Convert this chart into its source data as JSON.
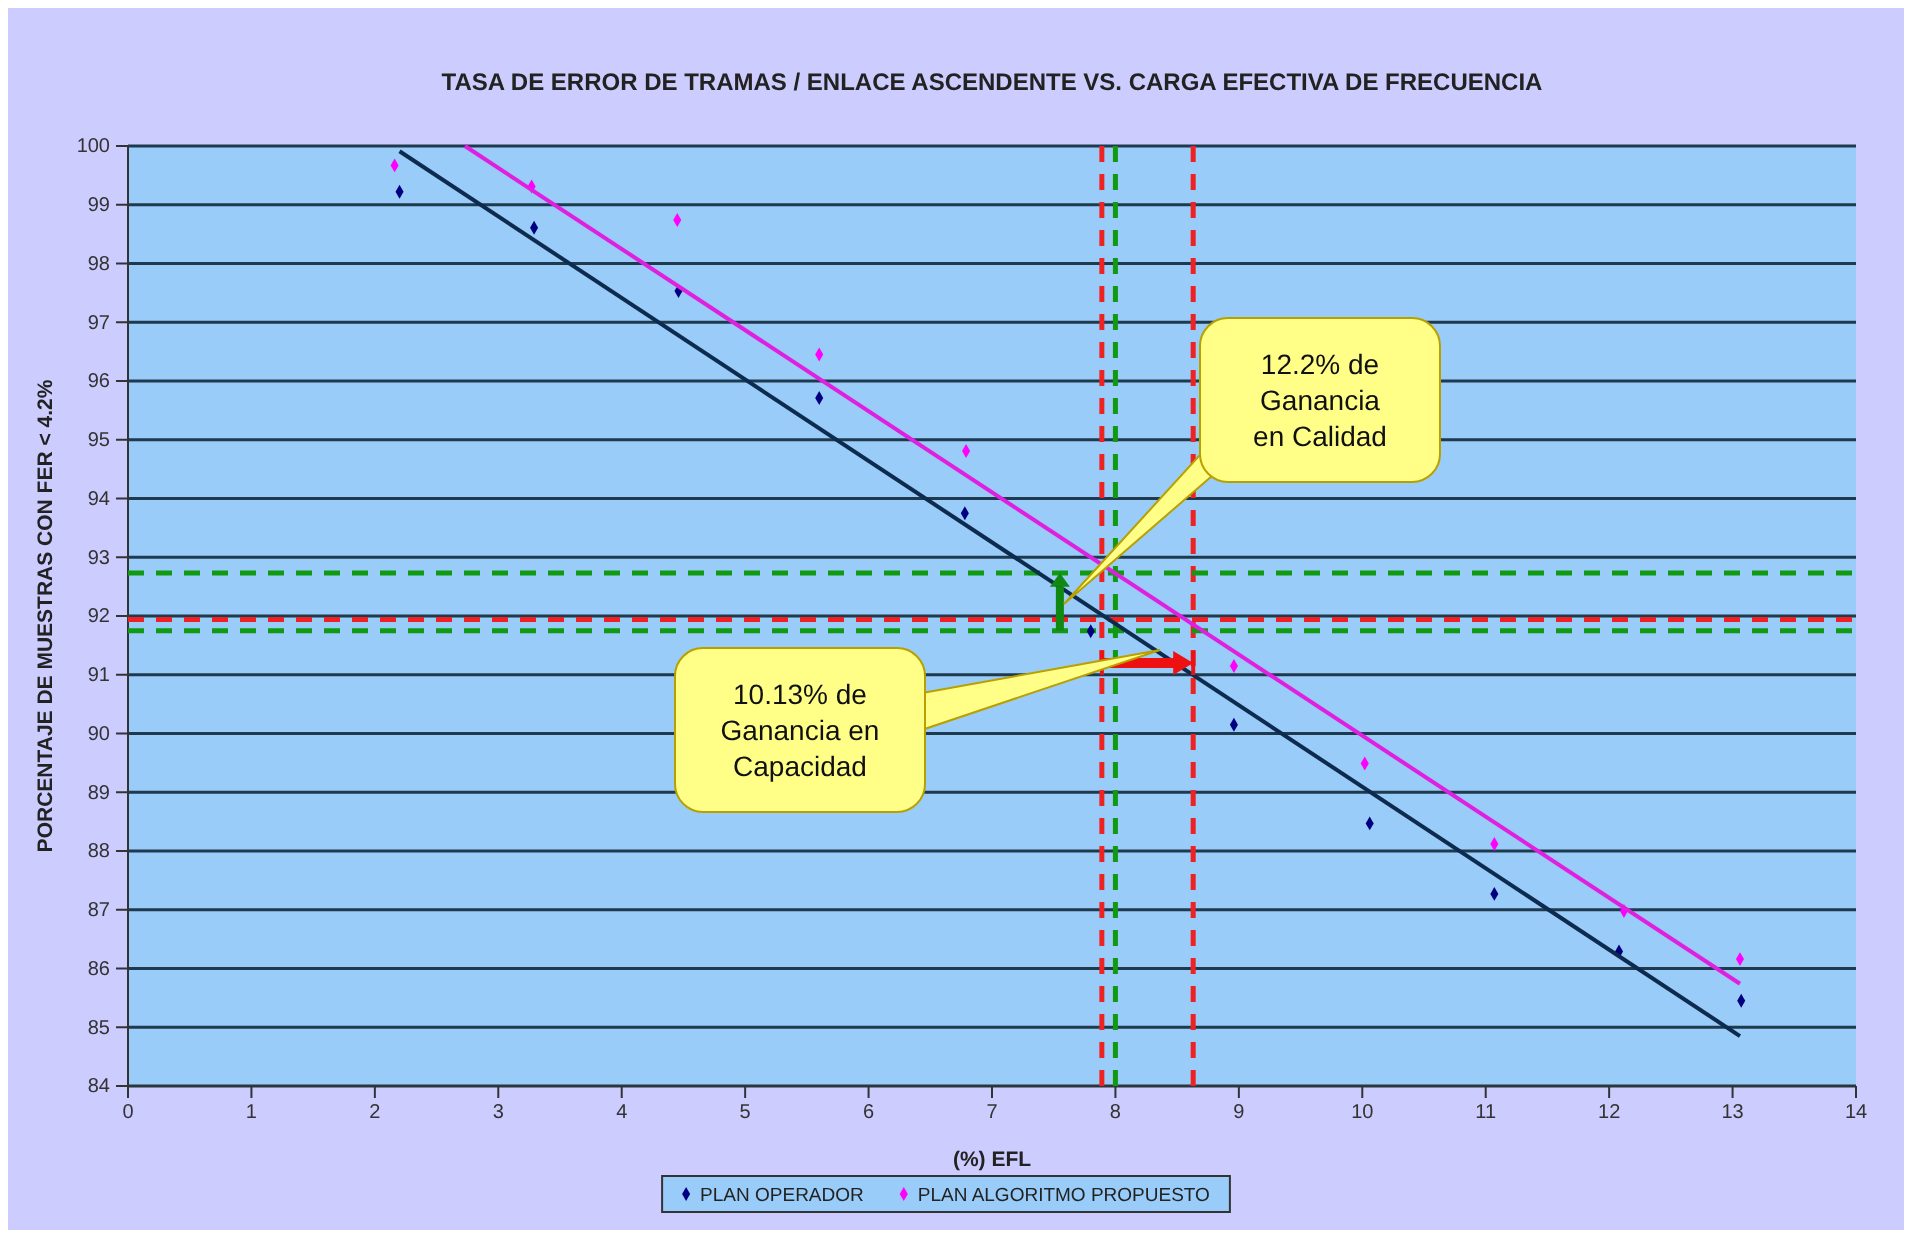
{
  "chart_data": {
    "type": "scatter",
    "title": "TASA DE ERROR DE TRAMAS / ENLACE ASCENDENTE VS. CARGA EFECTIVA DE FRECUENCIA",
    "xlabel": "(%) EFL",
    "ylabel": "PORCENTAJE DE MUESTRAS CON FER < 4.2%",
    "xlim": [
      0,
      14
    ],
    "xticks": [
      0,
      1,
      2,
      3,
      4,
      5,
      6,
      7,
      8,
      9,
      10,
      11,
      12,
      13,
      14
    ],
    "ylim": [
      84,
      100
    ],
    "yticks": [
      84,
      85,
      86,
      87,
      88,
      89,
      90,
      91,
      92,
      93,
      94,
      95,
      96,
      97,
      98,
      99,
      100
    ],
    "grid": "y",
    "legend": "bottom",
    "series": [
      {
        "name": "PLAN OPERADOR",
        "color": "#000080",
        "marker": "diamond",
        "x": [
          2.2,
          3.29,
          4.46,
          5.6,
          6.78,
          7.8,
          8.96,
          10.06,
          11.07,
          12.08,
          13.07
        ],
        "values": [
          99.22,
          98.61,
          97.53,
          95.71,
          93.75,
          91.74,
          90.15,
          88.47,
          87.27,
          86.29,
          85.45
        ]
      },
      {
        "name": "PLAN ALGORITMO PROPUESTO",
        "color": "#ff00ff",
        "marker": "diamond",
        "x": [
          2.16,
          3.27,
          4.45,
          5.6,
          6.79,
          8.96,
          10.02,
          11.07,
          12.12,
          13.06
        ],
        "values": [
          99.67,
          99.31,
          98.74,
          96.45,
          94.81,
          91.15,
          89.49,
          88.12,
          86.98,
          86.16
        ]
      },
      {
        "type": "line",
        "color": "#0d2b4e",
        "x": [
          2.2,
          13.06
        ],
        "values": [
          99.91,
          84.85
        ]
      },
      {
        "type": "line",
        "color": "#e020e0",
        "x": [
          2.73,
          13.06
        ],
        "values": [
          100,
          85.74
        ]
      }
    ],
    "ref_lines": [
      {
        "axis": "x",
        "value": 8.0,
        "color": "#119911",
        "line_style": "dashed"
      },
      {
        "axis": "x",
        "value": 7.89,
        "color": "#ee2222",
        "line_style": "dashed"
      },
      {
        "axis": "x",
        "value": 8.63,
        "color": "#ee2222",
        "line_style": "dashed"
      },
      {
        "axis": "y",
        "value": 91.94,
        "color": "#ee2222",
        "line_style": "dashed"
      },
      {
        "axis": "y",
        "value": 92.73,
        "color": "#119911",
        "line_style": "dashed"
      },
      {
        "axis": "y",
        "value": 91.75,
        "color": "#119911",
        "line_style": "dashed"
      }
    ],
    "annotations": [
      "12.2% de Ganancia en Calidad",
      "10.13% de Ganancia en Capacidad"
    ]
  }
}
